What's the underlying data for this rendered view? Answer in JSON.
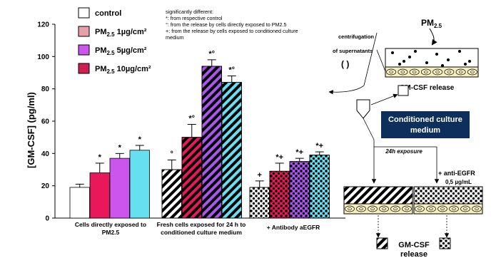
{
  "chart_data": {
    "type": "bar",
    "ylabel": "[GM-CSF] (pg/ml)",
    "ylim": [
      0,
      120
    ],
    "yticks": [
      "0",
      "20",
      "40",
      "60",
      "80",
      "100",
      "120"
    ],
    "legend": {
      "placement": "top-left",
      "items": [
        {
          "pre": "control",
          "sub": "",
          "post": "",
          "color": "#ffffff"
        },
        {
          "pre": "PM",
          "sub": "2.5",
          "post": " 1µg/cm²",
          "color": "#e8a0a8"
        },
        {
          "pre": "PM",
          "sub": "2.5",
          "post": " 5µg/cm²",
          "color": "#cc55ee"
        },
        {
          "pre": "PM",
          "sub": "2.5",
          "post": " 10µg/cm²",
          "color": "#cc2050"
        }
      ]
    },
    "notes": [
      "significantly different:",
      "*: from respective control",
      "°: from the release by cells directly exposed to PM2.5",
      "+: from the release by cells exposed to conditioned culture",
      "medium"
    ],
    "groups": [
      {
        "label_lines": [
          "Cells directly exposed to",
          "PM2.5"
        ],
        "pattern": "solid",
        "bars": [
          {
            "value": 19,
            "err": 2,
            "color": "#ffffff",
            "annot": ""
          },
          {
            "value": 28,
            "err": 6,
            "color": "#e8185a",
            "annot": "*"
          },
          {
            "value": 37,
            "err": 3,
            "color": "#cc55ee",
            "annot": "*"
          },
          {
            "value": 42,
            "err": 3,
            "color": "#66e0f0",
            "annot": "*"
          }
        ]
      },
      {
        "label_lines": [
          "Fresh cells exposed for 24 h to",
          "conditioned culture medium"
        ],
        "pattern": "stripes",
        "bars": [
          {
            "value": 30,
            "err": 6,
            "color": "#ffffff",
            "annot": "°"
          },
          {
            "value": 50,
            "err": 8,
            "color": "#e8185a",
            "annot": "*°"
          },
          {
            "value": 94,
            "err": 4,
            "color": "#aa55ee",
            "annot": "*°"
          },
          {
            "value": 84,
            "err": 4,
            "color": "#66e0f0",
            "annot": "*°"
          }
        ]
      },
      {
        "label_lines": [
          "+ Antibody aEGFR"
        ],
        "pattern": "dots",
        "bars": [
          {
            "value": 19,
            "err": 4,
            "color": "#ffffff",
            "annot": "+"
          },
          {
            "value": 29,
            "err": 5,
            "color": "#e8185a",
            "annot": "*+"
          },
          {
            "value": 35,
            "err": 2,
            "color": "#aa55ee",
            "annot": "*+"
          },
          {
            "value": 39,
            "err": 2,
            "color": "#66e0f0",
            "annot": "*+"
          }
        ]
      }
    ]
  },
  "diagram": {
    "pm_pre": "PM",
    "pm_sub": "2.5",
    "centrifugation_lines": [
      "centrifugation",
      "of supernatants"
    ],
    "release_label": "GM-CSF release",
    "conditioned_lines": [
      "Conditioned culture",
      "medium"
    ],
    "exposure_label": "24h exposure",
    "anti_egfr": "+ anti-EGFR",
    "dose": "0,5 µg/mL",
    "bottom_release_lines": [
      "GM-CSF",
      "release"
    ],
    "box_color": "#0e2f5c"
  }
}
